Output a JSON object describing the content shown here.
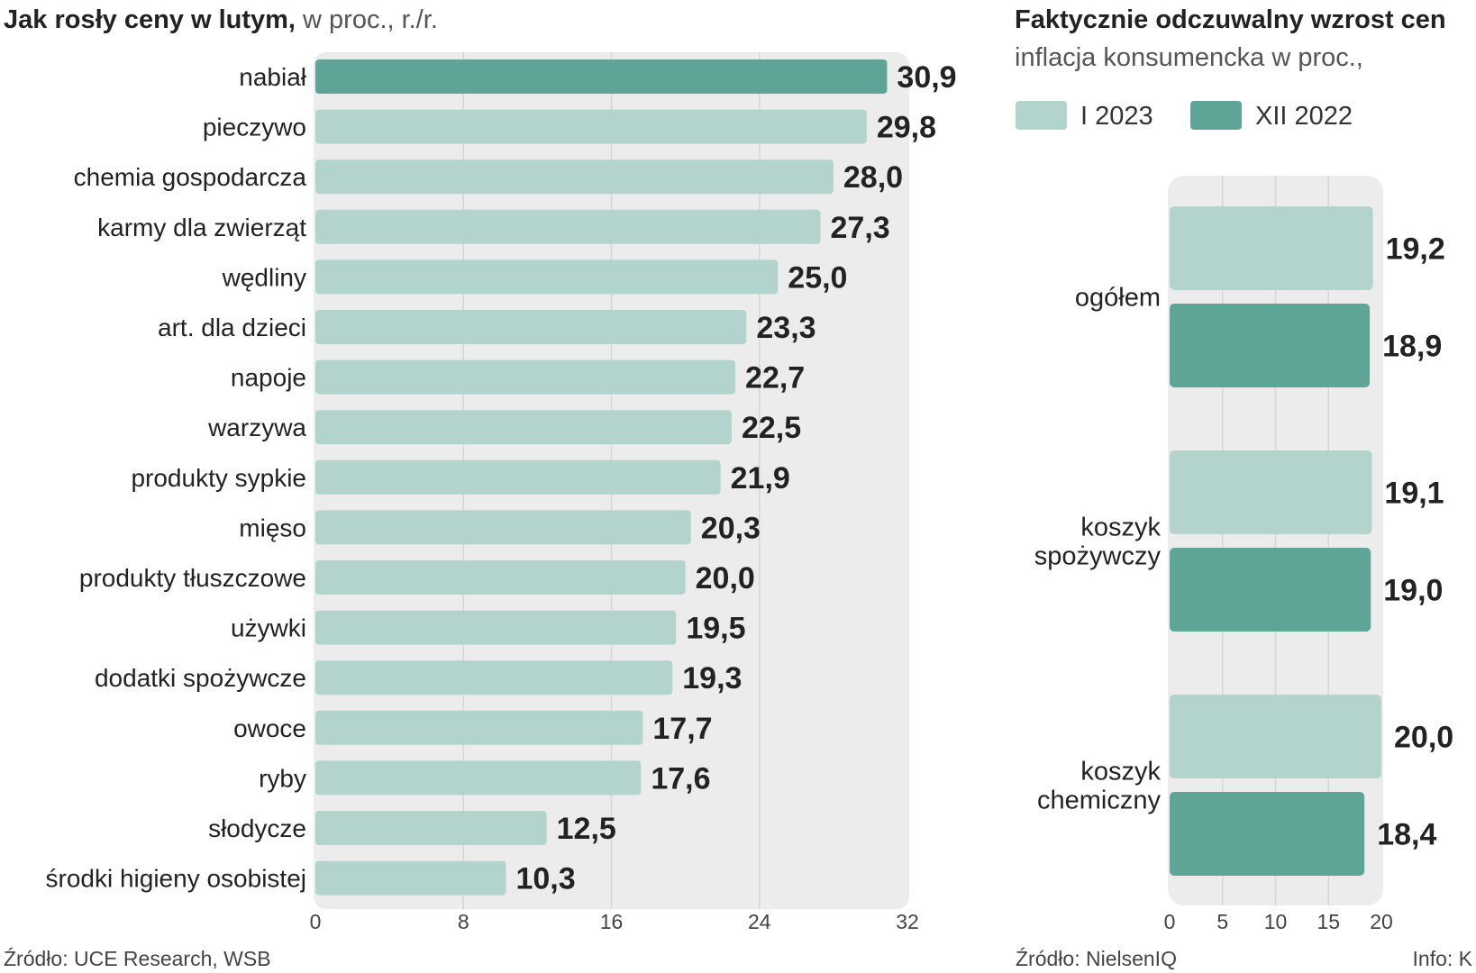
{
  "left": {
    "title_bold": "Jak rosły ceny w lutym,",
    "title_rest": " w proc., r./r.",
    "source": "Źródło: UCE Research, WSB"
  },
  "right": {
    "title": "Faktycznie odczuwalny wzrost cen",
    "subtitle": "inflacja konsumencka w proc.,",
    "legend": [
      {
        "label": "I 2023",
        "color": "#b2d4cd"
      },
      {
        "label": "XII 2022",
        "color": "#5fa597"
      }
    ],
    "source": "Źródło: NielsenIQ",
    "info": "Info: K"
  },
  "colors": {
    "light": "#b2d4cd",
    "dark": "#5fa597",
    "panel": "#ececec",
    "grid": "#d6d6d6",
    "text": "#222222",
    "muted": "#444444"
  },
  "chart_data": [
    {
      "type": "bar",
      "orientation": "horizontal",
      "title": "Jak rosły ceny w lutym, w proc., r./r.",
      "categories": [
        "nabiał",
        "pieczywo",
        "chemia gospodarcza",
        "karmy dla zwierząt",
        "wędliny",
        "art. dla dzieci",
        "napoje",
        "warzywa",
        "produkty sypkie",
        "mięso",
        "produkty tłuszczowe",
        "używki",
        "dodatki spożywcze",
        "owoce",
        "ryby",
        "słodycze",
        "środki higieny osobistej"
      ],
      "values": [
        30.9,
        29.8,
        28.0,
        27.3,
        25.0,
        23.3,
        22.7,
        22.5,
        21.9,
        20.3,
        20.0,
        19.5,
        19.3,
        17.7,
        17.6,
        12.5,
        10.3
      ],
      "labels": [
        "30,9",
        "29,8",
        "28,0",
        "27,3",
        "25,0",
        "23,3",
        "22,7",
        "22,5",
        "21,9",
        "20,3",
        "20,0",
        "19,5",
        "19,3",
        "17,7",
        "17,6",
        "12,5",
        "10,3"
      ],
      "highlight": [
        true,
        false,
        false,
        false,
        false,
        false,
        false,
        false,
        false,
        false,
        false,
        false,
        false,
        false,
        false,
        false,
        false
      ],
      "xlim": [
        0,
        32
      ],
      "xticks": [
        0,
        8,
        16,
        24,
        32
      ],
      "xtick_labels": [
        "0",
        "8",
        "16",
        "24",
        "32"
      ],
      "grid": true
    },
    {
      "type": "bar",
      "orientation": "horizontal",
      "title": "Faktycznie odczuwalny wzrost cen",
      "categories": [
        [
          "ogółem"
        ],
        [
          "koszyk",
          "spożywczy"
        ],
        [
          "koszyk",
          "chemiczny"
        ]
      ],
      "series": [
        {
          "name": "I 2023",
          "values": [
            19.2,
            19.1,
            20.0
          ],
          "labels": [
            "19,2",
            "19,1",
            "20,0"
          ]
        },
        {
          "name": "XII 2022",
          "values": [
            18.9,
            19.0,
            18.4
          ],
          "labels": [
            "18,9",
            "19,0",
            "18,4"
          ]
        }
      ],
      "xlim": [
        0,
        20
      ],
      "xticks": [
        0,
        5,
        10,
        15,
        20
      ],
      "xtick_labels": [
        "0",
        "5",
        "10",
        "15",
        "20"
      ],
      "grid": true
    }
  ]
}
